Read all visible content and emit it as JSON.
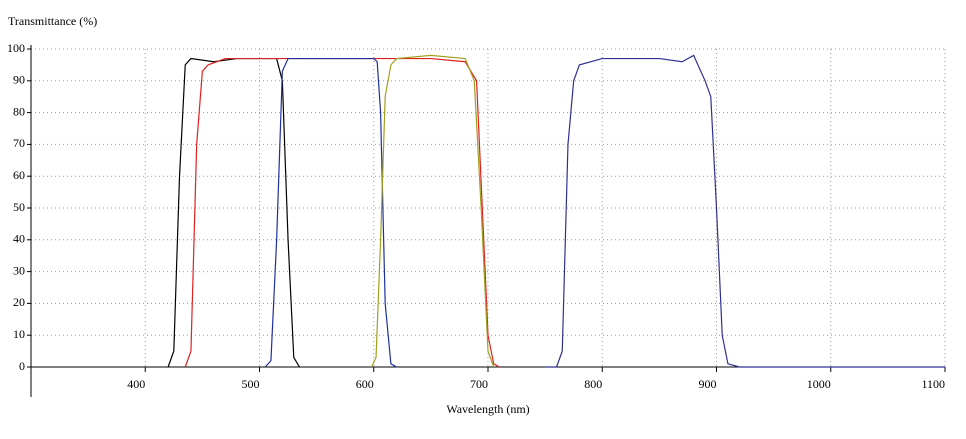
{
  "chart_data": {
    "type": "line",
    "y_label": "Transmittance (%)",
    "x_label": "Wavelength (nm)",
    "xlim": [
      300,
      1100
    ],
    "xticks": [
      400,
      500,
      600,
      700,
      800,
      900,
      1000,
      1100
    ],
    "ylim": [
      0,
      100
    ],
    "yticks": [
      0,
      10,
      20,
      30,
      40,
      50,
      60,
      70,
      80,
      90,
      100
    ],
    "grid": true,
    "series": [
      {
        "color": "#000000",
        "x": [
          420,
          425,
          430,
          435,
          440,
          460,
          480,
          500,
          515,
          520,
          525,
          530,
          535
        ],
        "values": [
          0,
          5,
          60,
          95,
          97,
          96,
          97,
          97,
          97,
          90,
          40,
          3,
          0
        ]
      },
      {
        "color": "#e02020",
        "x": [
          435,
          440,
          445,
          450,
          455,
          470,
          500,
          550,
          600,
          650,
          680,
          690,
          695,
          700,
          705,
          710
        ],
        "values": [
          0,
          5,
          70,
          93,
          95,
          97,
          97,
          97,
          97,
          97,
          96,
          90,
          50,
          10,
          1,
          0
        ]
      },
      {
        "color": "#2030a0",
        "x": [
          505,
          510,
          515,
          520,
          525,
          550,
          600,
          603,
          606,
          610,
          615,
          620
        ],
        "values": [
          0,
          2,
          40,
          93,
          97,
          97,
          97,
          96,
          80,
          20,
          1,
          0
        ]
      },
      {
        "color": "#a0a020",
        "x": [
          598,
          602,
          606,
          610,
          615,
          620,
          650,
          680,
          688,
          694,
          700,
          705
        ],
        "values": [
          0,
          3,
          40,
          85,
          95,
          97,
          98,
          97,
          90,
          50,
          5,
          0
        ]
      },
      {
        "color": "#303090",
        "x": [
          750,
          760,
          765,
          770,
          775,
          780,
          800,
          850,
          870,
          880,
          890,
          895,
          900,
          905,
          910,
          920,
          1100
        ],
        "values": [
          0,
          0,
          5,
          70,
          90,
          95,
          97,
          97,
          96,
          98,
          90,
          85,
          50,
          10,
          1,
          0,
          0
        ]
      }
    ]
  }
}
